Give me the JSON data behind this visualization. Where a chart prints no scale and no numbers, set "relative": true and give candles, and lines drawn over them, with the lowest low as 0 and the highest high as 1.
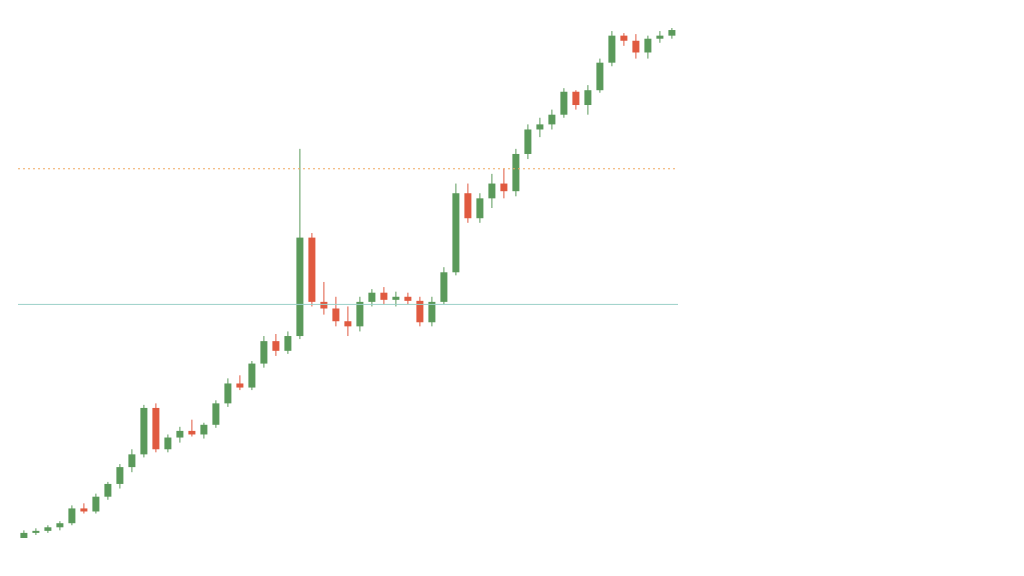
{
  "chart_data": {
    "type": "candlestick",
    "relative": true,
    "grid": false,
    "categories": [
      null,
      null,
      null,
      null,
      null,
      null,
      null,
      null,
      null,
      null,
      null,
      null,
      null,
      null,
      null,
      null,
      null,
      null,
      null,
      null,
      null,
      null,
      null,
      null,
      null,
      null,
      null,
      null,
      null,
      null,
      null,
      null,
      null,
      null,
      null,
      null,
      null,
      null,
      null,
      null,
      null,
      null,
      null,
      null,
      null,
      null,
      null,
      null,
      null,
      null,
      null,
      null,
      null,
      null,
      null
    ],
    "ohlc": [
      [
        0,
        0.015,
        0,
        0.01
      ],
      [
        0.01,
        0.019,
        0.006,
        0.014
      ],
      [
        0.014,
        0.025,
        0.01,
        0.021
      ],
      [
        0.021,
        0.033,
        0.015,
        0.029
      ],
      [
        0.029,
        0.064,
        0.025,
        0.058
      ],
      [
        0.058,
        0.068,
        0.048,
        0.052
      ],
      [
        0.052,
        0.087,
        0.048,
        0.081
      ],
      [
        0.081,
        0.11,
        0.075,
        0.106
      ],
      [
        0.106,
        0.145,
        0.097,
        0.139
      ],
      [
        0.139,
        0.174,
        0.129,
        0.164
      ],
      [
        0.164,
        0.261,
        0.158,
        0.255
      ],
      [
        0.255,
        0.264,
        0.168,
        0.174
      ],
      [
        0.174,
        0.203,
        0.168,
        0.197
      ],
      [
        0.197,
        0.218,
        0.187,
        0.21
      ],
      [
        0.21,
        0.232,
        0.199,
        0.203
      ],
      [
        0.203,
        0.226,
        0.195,
        0.222
      ],
      [
        0.222,
        0.27,
        0.216,
        0.264
      ],
      [
        0.264,
        0.313,
        0.257,
        0.303
      ],
      [
        0.303,
        0.319,
        0.29,
        0.295
      ],
      [
        0.295,
        0.347,
        0.29,
        0.342
      ],
      [
        0.342,
        0.396,
        0.334,
        0.386
      ],
      [
        0.386,
        0.4,
        0.357,
        0.367
      ],
      [
        0.367,
        0.405,
        0.361,
        0.396
      ],
      [
        0.396,
        0.763,
        0.39,
        0.589
      ],
      [
        0.589,
        0.598,
        0.454,
        0.463
      ],
      [
        0.463,
        0.502,
        0.438,
        0.45
      ],
      [
        0.45,
        0.473,
        0.415,
        0.425
      ],
      [
        0.425,
        0.454,
        0.396,
        0.415
      ],
      [
        0.415,
        0.473,
        0.405,
        0.463
      ],
      [
        0.463,
        0.488,
        0.454,
        0.481
      ],
      [
        0.481,
        0.492,
        0.458,
        0.467
      ],
      [
        0.467,
        0.483,
        0.454,
        0.473
      ],
      [
        0.473,
        0.481,
        0.458,
        0.465
      ],
      [
        0.465,
        0.473,
        0.415,
        0.423
      ],
      [
        0.423,
        0.473,
        0.415,
        0.463
      ],
      [
        0.463,
        0.531,
        0.458,
        0.521
      ],
      [
        0.521,
        0.695,
        0.515,
        0.676
      ],
      [
        0.676,
        0.695,
        0.618,
        0.627
      ],
      [
        0.627,
        0.676,
        0.618,
        0.666
      ],
      [
        0.666,
        0.714,
        0.647,
        0.695
      ],
      [
        0.695,
        0.724,
        0.666,
        0.68
      ],
      [
        0.68,
        0.763,
        0.67,
        0.753
      ],
      [
        0.753,
        0.811,
        0.743,
        0.801
      ],
      [
        0.801,
        0.824,
        0.786,
        0.811
      ],
      [
        0.811,
        0.84,
        0.801,
        0.83
      ],
      [
        0.83,
        0.882,
        0.824,
        0.875
      ],
      [
        0.875,
        0.878,
        0.84,
        0.849
      ],
      [
        0.849,
        0.888,
        0.83,
        0.878
      ],
      [
        0.878,
        0.94,
        0.873,
        0.932
      ],
      [
        0.932,
        0.994,
        0.925,
        0.985
      ],
      [
        0.985,
        0.99,
        0.965,
        0.975
      ],
      [
        0.975,
        0.988,
        0.94,
        0.952
      ],
      [
        0.952,
        0.985,
        0.94,
        0.979
      ],
      [
        0.979,
        0.994,
        0.971,
        0.985
      ],
      [
        0.985,
        1,
        0.979,
        0.996
      ]
    ],
    "colors": [
      "#5b9a5b",
      "#5b9a5b",
      "#5b9a5b",
      "#5b9a5b",
      "#5b9a5b",
      "#e05a40",
      "#5b9a5b",
      "#5b9a5b",
      "#5b9a5b",
      "#5b9a5b",
      "#5b9a5b",
      "#e05a40",
      "#5b9a5b",
      "#5b9a5b",
      "#e05a40",
      "#5b9a5b",
      "#5b9a5b",
      "#5b9a5b",
      "#e05a40",
      "#5b9a5b",
      "#5b9a5b",
      "#e05a40",
      "#5b9a5b",
      "#5b9a5b",
      "#e05a40",
      "#e05a40",
      "#e05a40",
      "#e05a40",
      "#5b9a5b",
      "#5b9a5b",
      "#e05a40",
      "#5b9a5b",
      "#e05a40",
      "#e05a40",
      "#5b9a5b",
      "#5b9a5b",
      "#5b9a5b",
      "#e05a40",
      "#5b9a5b",
      "#5b9a5b",
      "#e05a40",
      "#5b9a5b",
      "#5b9a5b",
      "#5b9a5b",
      "#5b9a5b",
      "#5b9a5b",
      "#e05a40",
      "#5b9a5b",
      "#5b9a5b",
      "#5b9a5b",
      "#e05a40",
      "#e05a40",
      "#5b9a5b",
      "#5b9a5b",
      "#5b9a5b"
    ],
    "ref_lines": [
      {
        "axis": "y",
        "value": 0.724,
        "color": "#f0a860",
        "line_style": "dotted"
      },
      {
        "axis": "y",
        "value": 0.458,
        "color": "#9cd0c8",
        "line_style": "solid"
      }
    ]
  }
}
